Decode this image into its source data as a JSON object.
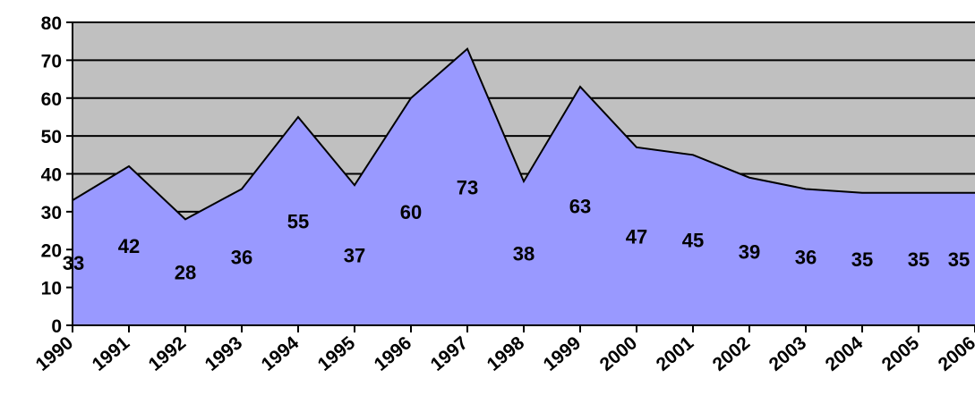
{
  "chart_data": {
    "type": "area",
    "categories": [
      "1990",
      "1991",
      "1992",
      "1993",
      "1994",
      "1995",
      "1996",
      "1997",
      "1998",
      "1999",
      "2000",
      "2001",
      "2002",
      "2003",
      "2004",
      "2005",
      "2006"
    ],
    "series": [
      {
        "values": [
          33,
          42,
          28,
          36,
          55,
          37,
          60,
          73,
          38,
          63,
          47,
          45,
          39,
          36,
          35,
          35,
          35
        ]
      }
    ],
    "data_labels": [
      "33",
      "42",
      "28",
      "36",
      "55",
      "37",
      "60",
      "73",
      "38",
      "63",
      "47",
      "45",
      "39",
      "36",
      "35",
      "35",
      "35"
    ],
    "ylim": [
      0,
      80
    ],
    "yticks": [
      0,
      10,
      20,
      30,
      40,
      50,
      60,
      70,
      80
    ],
    "ytick_labels": [
      "0",
      "10",
      "20",
      "30",
      "40",
      "50",
      "60",
      "70",
      "80"
    ],
    "grid": true,
    "legend": "none",
    "colors": {
      "plot_background": "#c0c0c0",
      "area_fill": "#9999ff",
      "area_line": "#000000",
      "gridline": "#000000"
    }
  }
}
